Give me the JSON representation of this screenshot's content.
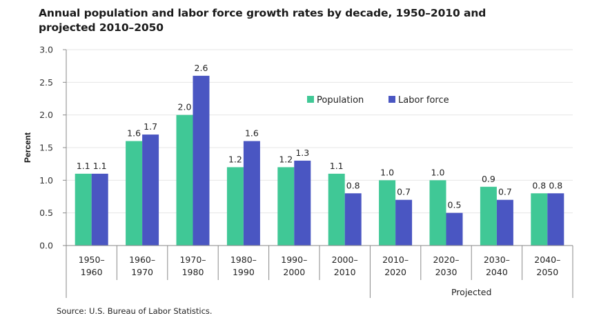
{
  "chart_data": {
    "type": "bar",
    "title": "Annual population and labor force growth rates by decade, 1950–2010 and projected 2010–2050",
    "title_lines": [
      "Annual population and labor force growth rates by decade, 1950–2010 and",
      "projected 2010–2050"
    ],
    "xlabel": "",
    "ylabel": "Percent",
    "ylim": [
      0,
      3.0
    ],
    "yticks": [
      "0.0",
      "0.5",
      "1.0",
      "1.5",
      "2.0",
      "2.5",
      "3.0"
    ],
    "grid": true,
    "legend_position": "upper-center",
    "categories": [
      [
        "1950–",
        "1960"
      ],
      [
        "1960–",
        "1970"
      ],
      [
        "1970–",
        "1980"
      ],
      [
        "1980–",
        "1990"
      ],
      [
        "1990–",
        "2000"
      ],
      [
        "2000–",
        "2010"
      ],
      [
        "2010–",
        "2020"
      ],
      [
        "2020–",
        "2030"
      ],
      [
        "2030–",
        "2040"
      ],
      [
        "2040–",
        "2050"
      ]
    ],
    "group_label": "Projected",
    "group_range": [
      6,
      9
    ],
    "series": [
      {
        "name": "Population",
        "color": "#40c896",
        "values": [
          1.1,
          1.6,
          2.0,
          1.2,
          1.2,
          1.1,
          1.0,
          1.0,
          0.9,
          0.8
        ],
        "labels": [
          "1.1",
          "1.6",
          "2.0",
          "1.2",
          "1.2",
          "1.1",
          "1.0",
          "1.0",
          "0.9",
          "0.8"
        ]
      },
      {
        "name": "Labor force",
        "color": "#4a56c2",
        "values": [
          1.1,
          1.7,
          2.6,
          1.6,
          1.3,
          0.8,
          0.7,
          0.5,
          0.7,
          0.8
        ],
        "labels": [
          "1.1",
          "1.7",
          "2.6",
          "1.6",
          "1.3",
          "0.8",
          "0.7",
          "0.5",
          "0.7",
          "0.8"
        ]
      }
    ],
    "source": "Source: U.S. Bureau of Labor Statistics."
  }
}
